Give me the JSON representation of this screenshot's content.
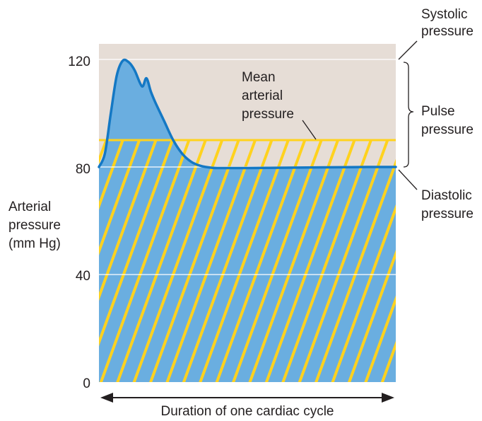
{
  "chart_data": {
    "type": "line",
    "title": "",
    "ylabel": [
      "Arterial",
      "pressure",
      "(mm Hg)"
    ],
    "xlabel": "Duration of one cardiac cycle",
    "ylim": [
      0,
      128
    ],
    "yticks": [
      0,
      40,
      80,
      120
    ],
    "xlim": [
      0,
      1
    ],
    "grid": "horizontal at 40, 80, 120",
    "series": [
      {
        "kind": "arterial-pressure-waveform",
        "x": [
          0.0,
          0.02,
          0.04,
          0.06,
          0.08,
          0.1,
          0.12,
          0.145,
          0.16,
          0.175,
          0.19,
          0.22,
          0.25,
          0.28,
          0.31,
          0.34,
          0.38,
          0.42,
          0.5,
          0.6,
          0.7,
          0.8,
          0.9,
          1.0
        ],
        "y": [
          80,
          85,
          100,
          114,
          119.5,
          119,
          116,
          110,
          113,
          108,
          104,
          97,
          90,
          85,
          82,
          80.5,
          79.7,
          79.6,
          79.6,
          79.7,
          79.8,
          79.9,
          80,
          80
        ]
      }
    ],
    "mean_arterial_pressure": 90,
    "systolic_pressure": 120,
    "diastolic_pressure": 80,
    "annotations": {
      "systolic": [
        "Systolic",
        "pressure"
      ],
      "pulse": [
        "Pulse",
        "pressure"
      ],
      "diastolic": [
        "Diastolic",
        "pressure"
      ],
      "mean": [
        "Mean",
        "arterial",
        "pressure"
      ]
    },
    "colors": {
      "pulse_region": "#e6ddd6",
      "fill": "#6aaee0",
      "curve": "#1478c4",
      "hatch": "#ffd21e",
      "grid": "#ffffff",
      "text": "#231f20"
    }
  }
}
